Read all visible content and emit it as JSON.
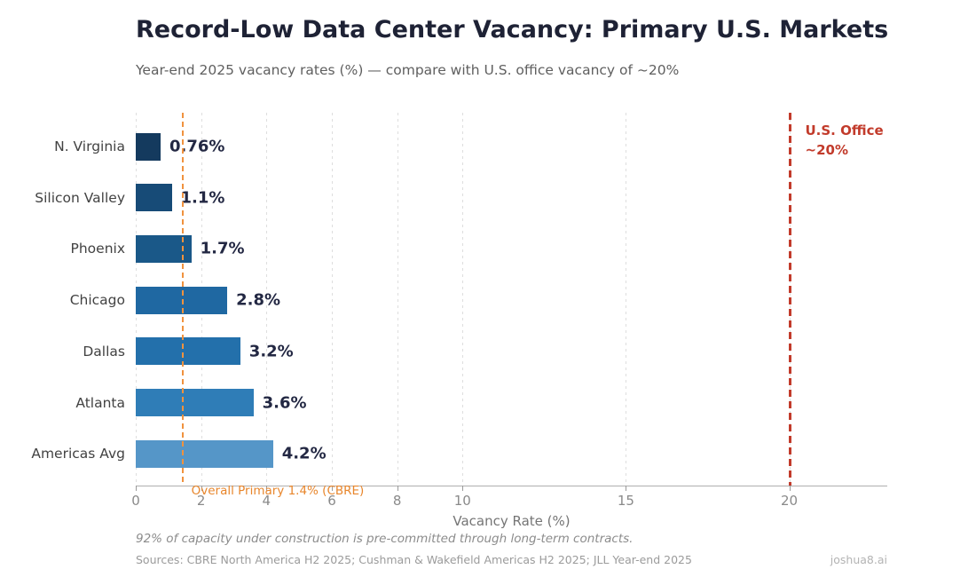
{
  "chart_data": {
    "type": "bar",
    "orientation": "horizontal",
    "title": "Record-Low Data Center Vacancy: Primary U.S. Markets",
    "subtitle": "Year-end 2025 vacancy rates (%) — compare with U.S. office vacancy of ~20%",
    "categories": [
      "N. Virginia",
      "Silicon Valley",
      "Phoenix",
      "Chicago",
      "Dallas",
      "Atlanta",
      "Americas Avg"
    ],
    "values": [
      0.76,
      1.1,
      1.7,
      2.8,
      3.2,
      3.6,
      4.2
    ],
    "value_labels": [
      "0.76%",
      "1.1%",
      "1.7%",
      "2.8%",
      "3.2%",
      "3.6%",
      "4.2%"
    ],
    "bar_colors": [
      "#143a5e",
      "#174b77",
      "#1a5888",
      "#1f68a2",
      "#2370ab",
      "#2f7db7",
      "#5596c8"
    ],
    "xlabel": "Vacancy Rate (%)",
    "xlim": [
      0,
      23
    ],
    "xticks": [
      0,
      2,
      4,
      6,
      8,
      10,
      15,
      20
    ],
    "grid": "vertical dashed gridlines at xticks",
    "legend": "none",
    "reference_lines": [
      {
        "value": 1.4,
        "label": "Overall Primary 1.4% (CBRE)",
        "color": "#e8862c",
        "style": "dashed",
        "label_position": "below-axis"
      },
      {
        "value": 20,
        "label_line1": "U.S. Office",
        "label_line2": "~20%",
        "color": "#c23b2b",
        "style": "dashed",
        "label_position": "top-right-of-line"
      }
    ],
    "footnote": "92% of capacity under construction is pre-committed through long-term contracts.",
    "sources": "Sources: CBRE North America H2 2025; Cushman & Wakefield Americas H2 2025; JLL Year-end 2025",
    "branding": "joshua8.ai",
    "colors": {
      "title": "#1e2235",
      "subtitle": "#5f5f5f",
      "value_label": "#232843",
      "category_label": "#424242",
      "axis": "#aeaeae",
      "tick_label": "#8a8a8a",
      "accent_orange": "#e8862c",
      "accent_red": "#c23b2b"
    }
  }
}
